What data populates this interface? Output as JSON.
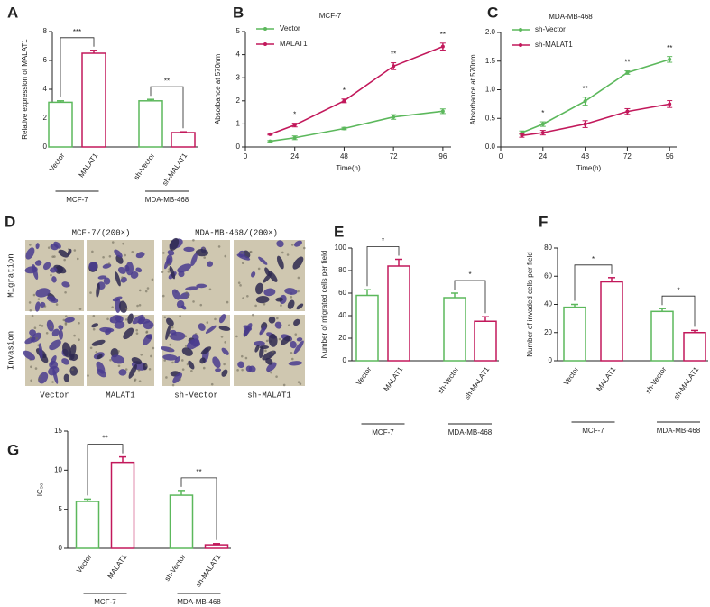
{
  "chart_data": [
    {
      "type": "bar",
      "panel": "A",
      "y_label": "Relative expression of MALAT1",
      "categories": [
        "Vector",
        "MALAT1",
        "sh-Vector",
        "sh-MALAT1"
      ],
      "values": [
        3.1,
        6.5,
        3.2,
        1.0
      ],
      "errors": [
        0.1,
        0.2,
        0.1,
        0.05
      ],
      "colors": [
        "#5cb85c",
        "#c2185b",
        "#5cb85c",
        "#c2185b"
      ],
      "ylim": [
        0,
        8
      ],
      "yticks": [
        0,
        2,
        4,
        6,
        8
      ],
      "groups": [
        "MCF-7",
        "MDA-MB-468"
      ],
      "significance": [
        "***",
        "**"
      ]
    },
    {
      "type": "line",
      "panel": "B",
      "title": "MCF-7",
      "x_label": "Time(h)",
      "y_label": "Absorbance at 570nm",
      "x": [
        12,
        24,
        48,
        72,
        96
      ],
      "series": [
        {
          "name": "Vector",
          "color": "#5cb85c",
          "values": [
            0.25,
            0.4,
            0.8,
            1.3,
            1.55
          ],
          "errors": [
            0.03,
            0.08,
            0.05,
            0.1,
            0.1
          ]
        },
        {
          "name": "MALAT1",
          "color": "#c2185b",
          "values": [
            0.55,
            0.95,
            2.0,
            3.5,
            4.35
          ],
          "errors": [
            0.03,
            0.08,
            0.08,
            0.15,
            0.15
          ]
        }
      ],
      "xlim": [
        0,
        100
      ],
      "xticks": [
        0,
        24,
        48,
        72,
        96
      ],
      "ylim": [
        0,
        5
      ],
      "yticks": [
        0,
        1,
        2,
        3,
        4,
        5
      ],
      "annotations": [
        null,
        "*",
        "*",
        "**",
        "**"
      ],
      "legend": "upper left"
    },
    {
      "type": "line",
      "panel": "C",
      "title": "MDA-MB-468",
      "x_label": "Time(h)",
      "y_label": "Absorbance at 570nm",
      "x": [
        12,
        24,
        48,
        72,
        96
      ],
      "series": [
        {
          "name": "sh-Vector",
          "color": "#5cb85c",
          "values": [
            0.25,
            0.4,
            0.8,
            1.3,
            1.53
          ],
          "errors": [
            0.03,
            0.04,
            0.07,
            0.03,
            0.05
          ]
        },
        {
          "name": "sh-MALAT1",
          "color": "#c2185b",
          "values": [
            0.2,
            0.25,
            0.4,
            0.62,
            0.75
          ],
          "errors": [
            0.03,
            0.04,
            0.06,
            0.05,
            0.06
          ]
        }
      ],
      "xlim": [
        0,
        100
      ],
      "xticks": [
        0,
        24,
        48,
        72,
        96
      ],
      "ylim": [
        0,
        2
      ],
      "yticks": [
        {
          "value": 0,
          "label": "0.0"
        },
        {
          "value": 0.5,
          "label": "0.5"
        },
        {
          "value": 1,
          "label": "1.0"
        },
        {
          "value": 1.5,
          "label": "1.5"
        },
        {
          "value": 2,
          "label": "2.0"
        }
      ],
      "annotations": [
        null,
        "*",
        "**",
        "**",
        "**"
      ],
      "legend": "upper left"
    },
    {
      "type": "bar",
      "panel": "E",
      "y_label": "Number of migrated cells per field",
      "categories": [
        "Vector",
        "MALAT1",
        "sh-Vector",
        "sh-MALAT1"
      ],
      "values": [
        58,
        84,
        56,
        35
      ],
      "errors": [
        5,
        6,
        4,
        4
      ],
      "colors": [
        "#5cb85c",
        "#c2185b",
        "#5cb85c",
        "#c2185b"
      ],
      "ylim": [
        0,
        100
      ],
      "yticks": [
        0,
        20,
        40,
        60,
        80,
        100
      ],
      "groups": [
        "MCF-7",
        "MDA-MB-468"
      ],
      "significance": [
        "*",
        "*"
      ]
    },
    {
      "type": "bar",
      "panel": "F",
      "y_label": "Number of invaded cells per field",
      "categories": [
        "Vector",
        "MALAT1",
        "sh-Vector",
        "sh-MALAT1"
      ],
      "values": [
        38,
        56,
        35,
        20
      ],
      "errors": [
        2,
        3,
        2,
        1.5
      ],
      "colors": [
        "#5cb85c",
        "#c2185b",
        "#5cb85c",
        "#c2185b"
      ],
      "ylim": [
        0,
        80
      ],
      "yticks": [
        0,
        20,
        40,
        60,
        80
      ],
      "groups": [
        "MCF-7",
        "MDA-MB-468"
      ],
      "significance": [
        "*",
        "*"
      ]
    },
    {
      "type": "bar",
      "panel": "G",
      "y_label": "IC₅₀",
      "categories": [
        "Vector",
        "MALAT1",
        "sh-Vector",
        "sh-MALAT1"
      ],
      "values": [
        6.0,
        11.0,
        6.8,
        0.45
      ],
      "errors": [
        0.3,
        0.7,
        0.6,
        0.15
      ],
      "colors": [
        "#5cb85c",
        "#c2185b",
        "#5cb85c",
        "#c2185b"
      ],
      "ylim": [
        0,
        15
      ],
      "yticks": [
        0,
        5,
        10,
        15
      ],
      "groups": [
        "MCF-7",
        "MDA-MB-468"
      ],
      "significance": [
        "**",
        "**"
      ]
    }
  ],
  "image_panel": {
    "panel": "D",
    "titles": [
      "MCF-7/(200×)",
      "MDA-MB-468/(200×)"
    ],
    "rows": [
      "Migration",
      "Invasion"
    ],
    "columns": [
      "Vector",
      "MALAT1",
      "sh-Vector",
      "sh-MALAT1"
    ]
  }
}
